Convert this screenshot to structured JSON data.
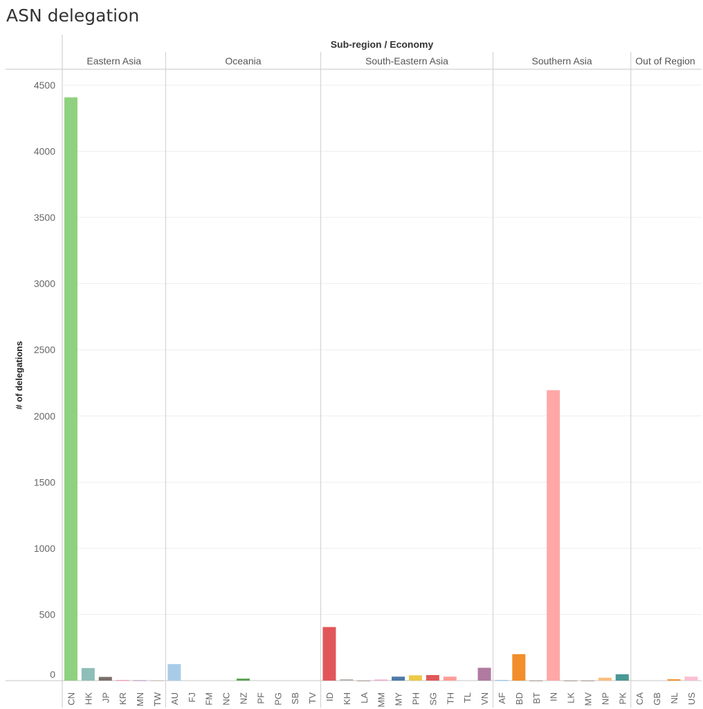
{
  "title": "ASN delegation",
  "chart_data": {
    "type": "bar",
    "column_header": "Sub-region / Economy",
    "ylabel": "# of delegations",
    "ylim": [
      0,
      4650
    ],
    "yticks": [
      0,
      500,
      1000,
      1500,
      2000,
      2500,
      3000,
      3500,
      4000,
      4500
    ],
    "grid": true,
    "regions": [
      {
        "name": "Eastern Asia",
        "bars": [
          {
            "label": "CN",
            "value": 4408,
            "color": "#8fd17f"
          },
          {
            "label": "HK",
            "value": 95,
            "color": "#8ebeb8"
          },
          {
            "label": "JP",
            "value": 28,
            "color": "#7a6f6a"
          },
          {
            "label": "KR",
            "value": 5,
            "color": "#f2a6c4"
          },
          {
            "label": "MN",
            "value": 4,
            "color": "#c9b1cf"
          },
          {
            "label": "TW",
            "value": 3,
            "color": "#d8c6c0"
          }
        ]
      },
      {
        "name": "Oceania",
        "bars": [
          {
            "label": "AU",
            "value": 125,
            "color": "#a8cce8"
          },
          {
            "label": "FJ",
            "value": 0,
            "color": "#4e79a7"
          },
          {
            "label": "FM",
            "value": 0,
            "color": "#4e79a7"
          },
          {
            "label": "NC",
            "value": 0,
            "color": "#4e79a7"
          },
          {
            "label": "NZ",
            "value": 15,
            "color": "#59a14f"
          },
          {
            "label": "PF",
            "value": 0,
            "color": "#4e79a7"
          },
          {
            "label": "PG",
            "value": 0,
            "color": "#4e79a7"
          },
          {
            "label": "SB",
            "value": 0,
            "color": "#4e79a7"
          },
          {
            "label": "TV",
            "value": 0,
            "color": "#4e79a7"
          }
        ]
      },
      {
        "name": "South-Eastern Asia",
        "bars": [
          {
            "label": "ID",
            "value": 405,
            "color": "#e15759"
          },
          {
            "label": "KH",
            "value": 10,
            "color": "#b8b0ac"
          },
          {
            "label": "LA",
            "value": 2,
            "color": "#bab0ac"
          },
          {
            "label": "MM",
            "value": 8,
            "color": "#f1a7d1"
          },
          {
            "label": "MY",
            "value": 30,
            "color": "#4e79a7"
          },
          {
            "label": "PH",
            "value": 40,
            "color": "#edc948"
          },
          {
            "label": "SG",
            "value": 42,
            "color": "#e15759"
          },
          {
            "label": "TH",
            "value": 30,
            "color": "#ff9d9a"
          },
          {
            "label": "TL",
            "value": 0,
            "color": "#bab0ac"
          },
          {
            "label": "VN",
            "value": 97,
            "color": "#b07aa1"
          }
        ]
      },
      {
        "name": "Southern Asia",
        "bars": [
          {
            "label": "AF",
            "value": 5,
            "color": "#a0cbe8"
          },
          {
            "label": "BD",
            "value": 200,
            "color": "#f28e2b"
          },
          {
            "label": "BT",
            "value": 2,
            "color": "#bab0ac"
          },
          {
            "label": "IN",
            "value": 2195,
            "color": "#ffa8a6"
          },
          {
            "label": "LK",
            "value": 2,
            "color": "#bab0ac"
          },
          {
            "label": "MV",
            "value": 2,
            "color": "#bab0ac"
          },
          {
            "label": "NP",
            "value": 22,
            "color": "#ffbe7d"
          },
          {
            "label": "PK",
            "value": 48,
            "color": "#499894"
          }
        ]
      },
      {
        "name": "Out of Region",
        "bars": [
          {
            "label": "CA",
            "value": 0,
            "color": "#bab0ac"
          },
          {
            "label": "GB",
            "value": 0,
            "color": "#bab0ac"
          },
          {
            "label": "NL",
            "value": 10,
            "color": "#f28e2b"
          },
          {
            "label": "US",
            "value": 30,
            "color": "#fabfd2"
          }
        ]
      }
    ]
  }
}
